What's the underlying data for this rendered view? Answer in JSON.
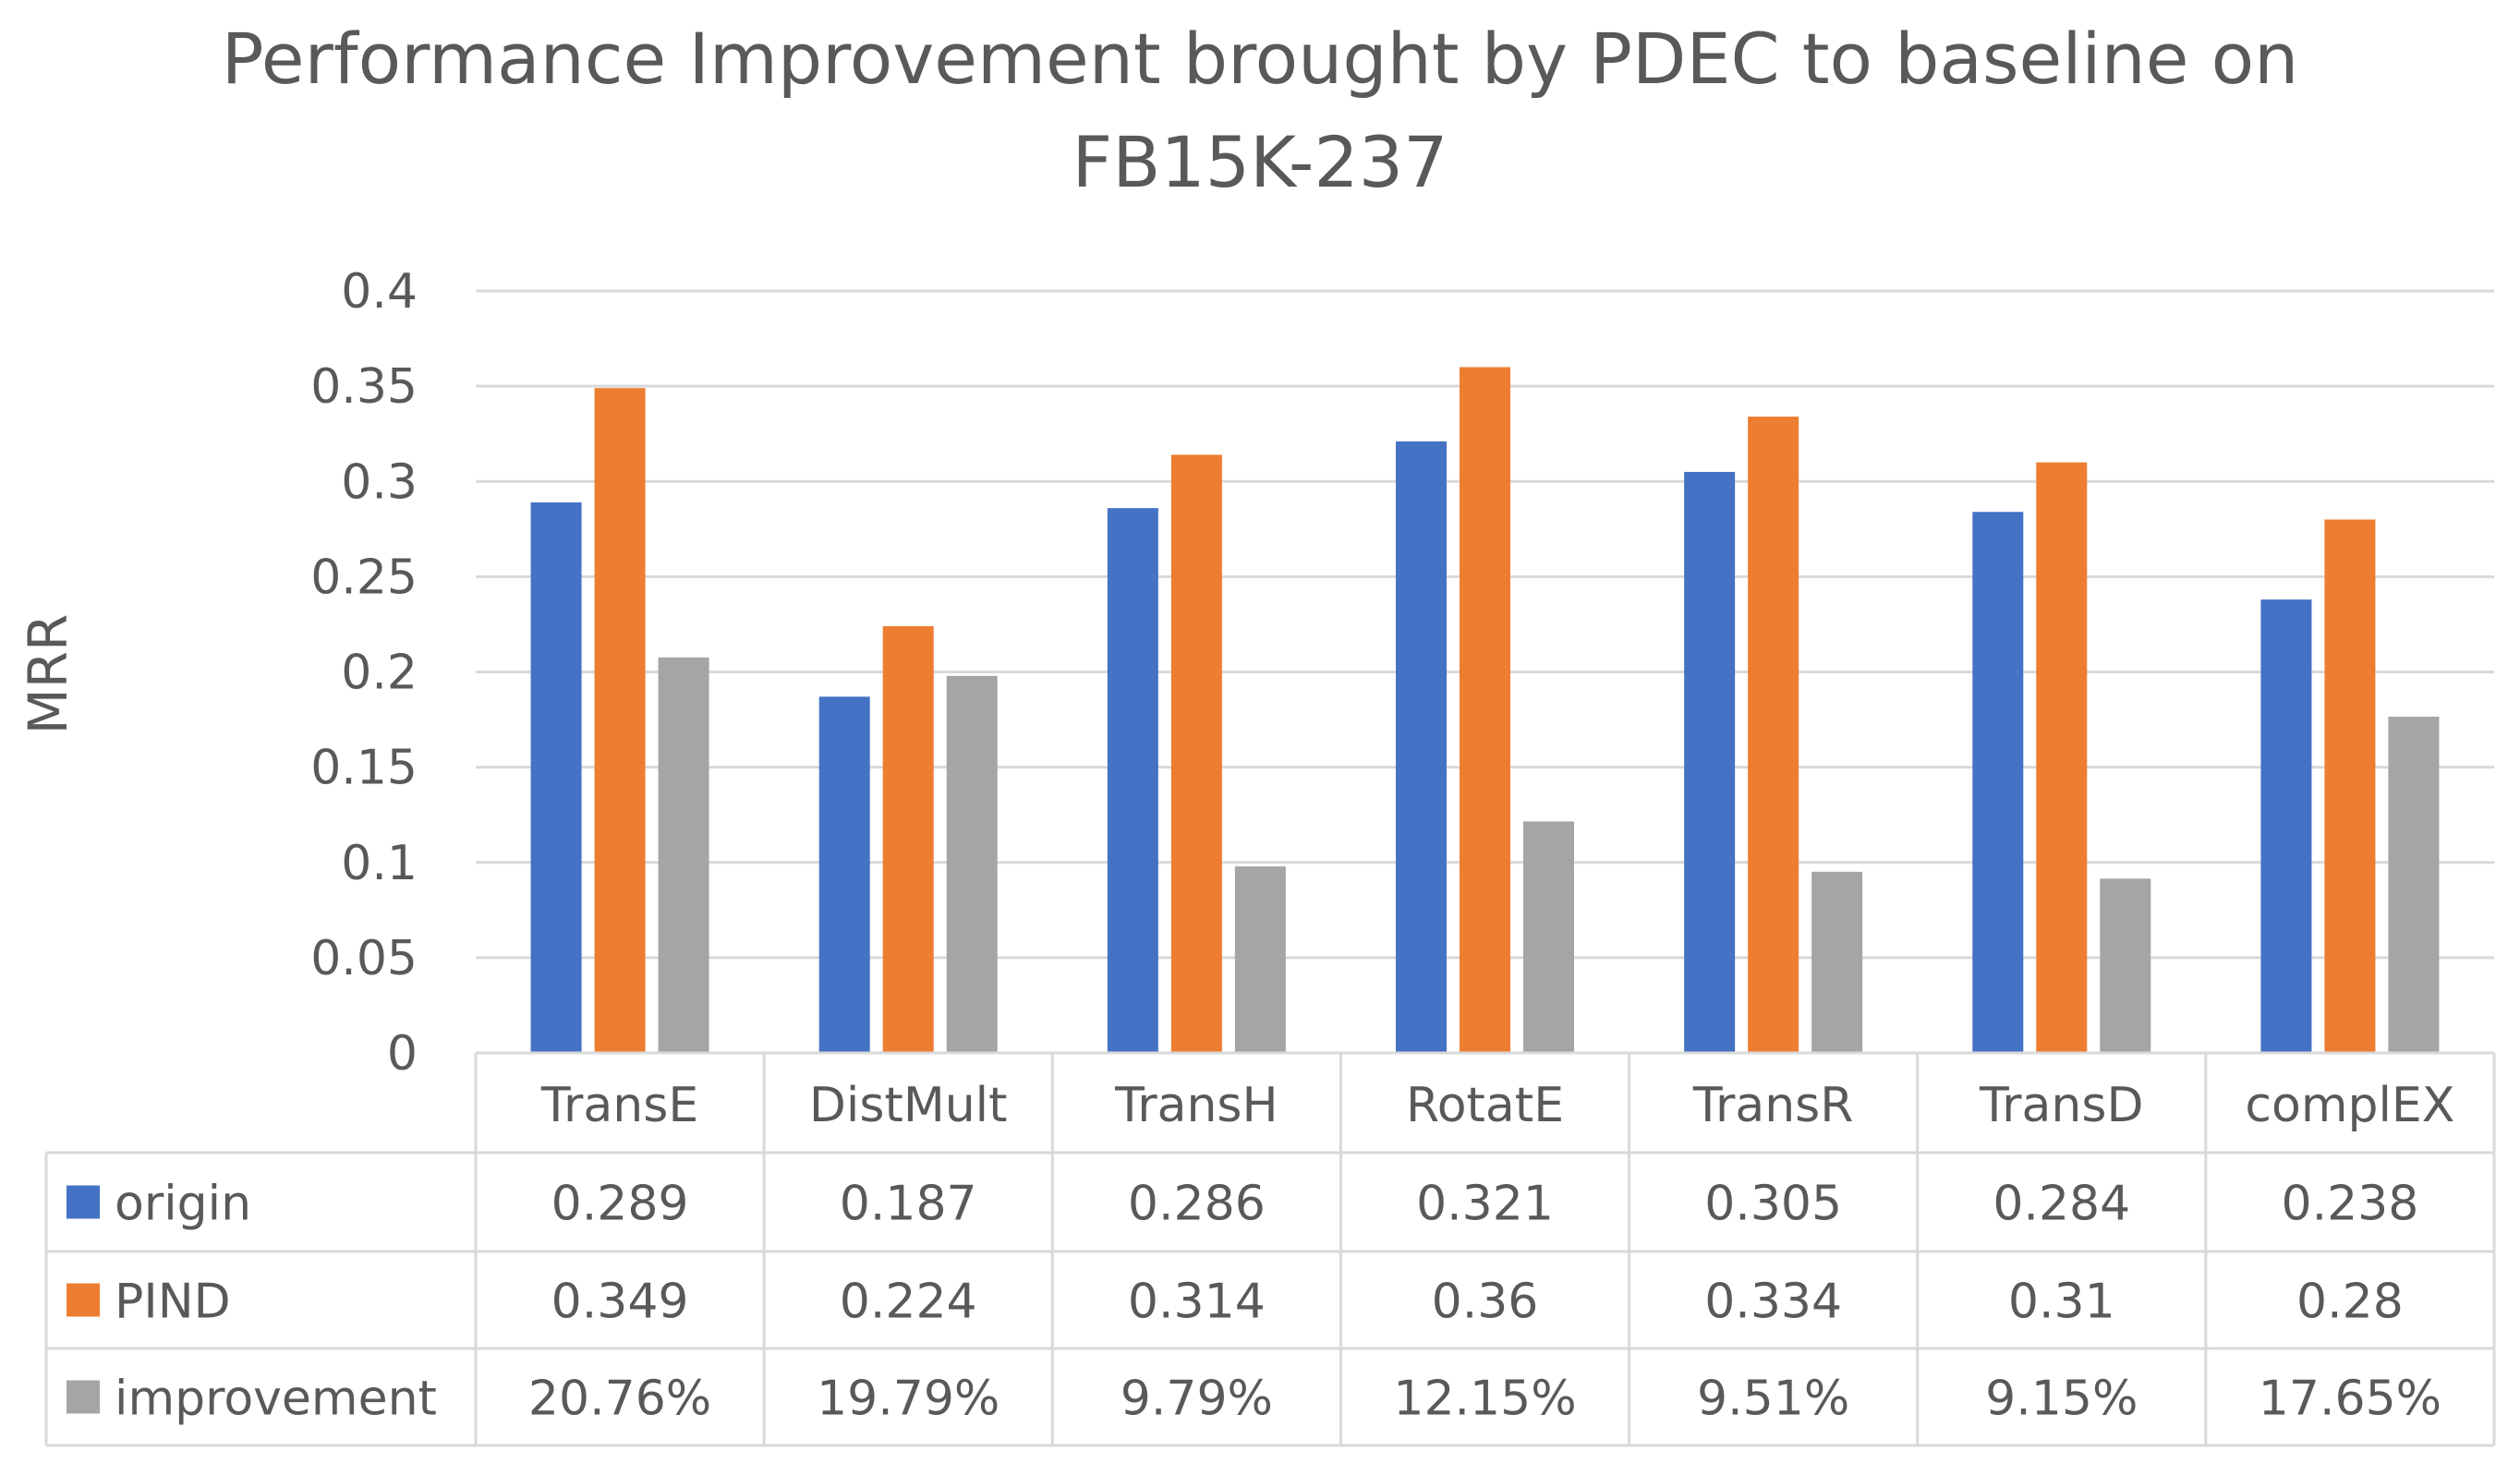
{
  "title_lines": [
    "Performance Improvement brought by PDEC to baseline on",
    "FB15K-237"
  ],
  "chart_data": {
    "type": "bar",
    "title": "Performance Improvement brought by PDEC to baseline on FB15K-237",
    "xlabel": "",
    "ylabel": "MRR",
    "ylim": [
      0,
      0.4
    ],
    "yticks": [
      "0",
      "0.05",
      "0.1",
      "0.15",
      "0.2",
      "0.25",
      "0.3",
      "0.35",
      "0.4"
    ],
    "grid": true,
    "categories": [
      "TransE",
      "DistMult",
      "TransH",
      "RotatE",
      "TransR",
      "TransD",
      "complEX"
    ],
    "series": [
      {
        "name": "origin",
        "color": "#4472C4",
        "values": [
          0.289,
          0.187,
          0.286,
          0.321,
          0.305,
          0.284,
          0.238
        ],
        "labels": [
          "0.289",
          "0.187",
          "0.286",
          "0.321",
          "0.305",
          "0.284",
          "0.238"
        ]
      },
      {
        "name": "PIND",
        "color": "#ED7D31",
        "values": [
          0.349,
          0.224,
          0.314,
          0.36,
          0.334,
          0.31,
          0.28
        ],
        "labels": [
          "0.349",
          "0.224",
          "0.314",
          "0.36",
          "0.334",
          "0.31",
          "0.28"
        ]
      },
      {
        "name": "improvement",
        "color": "#A5A5A5",
        "values": [
          0.2076,
          0.1979,
          0.0979,
          0.1215,
          0.0951,
          0.0915,
          0.1765
        ],
        "labels": [
          "20.76%",
          "19.79%",
          "9.79%",
          "12.15%",
          "9.51%",
          "9.15%",
          "17.65%"
        ]
      }
    ],
    "data_table": true
  }
}
